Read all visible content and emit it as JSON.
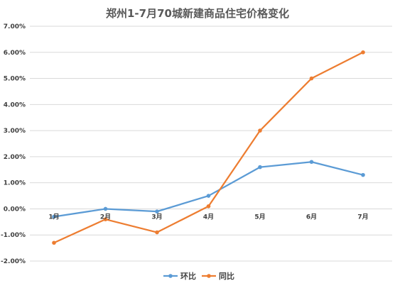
{
  "chart_data": {
    "type": "line",
    "title": "郑州1-7月70城新建商品住宅价格变化",
    "categories": [
      "1月",
      "2月",
      "3月",
      "4月",
      "5月",
      "6月",
      "7月"
    ],
    "y_ticks": [
      "7.00%",
      "6.00%",
      "5.00%",
      "4.00%",
      "3.00%",
      "2.00%",
      "1.00%",
      "0.00%",
      "-1.00%",
      "-2.00%"
    ],
    "ylim": [
      -2.0,
      7.0
    ],
    "y_unit": "%",
    "grid": true,
    "legend_position": "bottom",
    "series": [
      {
        "name": "环比",
        "color": "#5b9bd5",
        "values": [
          -0.3,
          0.0,
          -0.1,
          0.5,
          1.6,
          1.8,
          1.3
        ]
      },
      {
        "name": "同比",
        "color": "#ed7d31",
        "values": [
          -1.3,
          -0.4,
          -0.9,
          0.1,
          3.0,
          5.0,
          6.0
        ]
      }
    ]
  }
}
